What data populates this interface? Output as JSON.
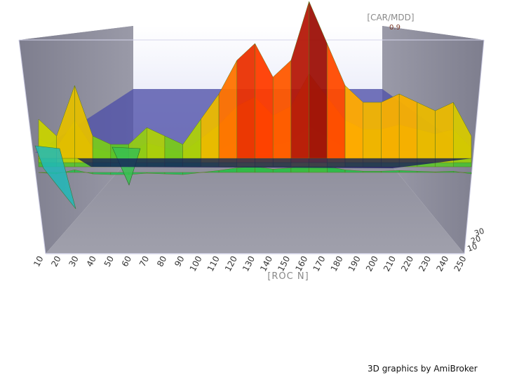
{
  "chart_data": {
    "type": "surface-3d",
    "x_label": "[ROC N]",
    "x_ticks": [
      "10",
      "20",
      "30",
      "40",
      "50",
      "60",
      "70",
      "80",
      "90",
      "100",
      "110",
      "120",
      "130",
      "140",
      "150",
      "160",
      "170",
      "180",
      "190",
      "200",
      "210",
      "220",
      "230",
      "240",
      "250"
    ],
    "z_label": "[CAR/MDD]",
    "z_value_shown": "0.9",
    "depth_ticks": [
      "10",
      "20",
      "30"
    ],
    "ridge_values": [
      0.2,
      0.1,
      0.4,
      0.1,
      0.05,
      0.05,
      0.15,
      0.1,
      0.05,
      0.2,
      0.35,
      0.55,
      0.65,
      0.45,
      0.55,
      0.9,
      0.65,
      0.4,
      0.3,
      0.3,
      0.35,
      0.3,
      0.25,
      0.3,
      0.1
    ]
  },
  "footer": {
    "credit": "3D graphics by AmiBroker"
  },
  "colors": {
    "back_wall": "#eceefc",
    "side_wall": "#7f7f90",
    "floor": "#9898a4",
    "plane": "#5658b0"
  }
}
